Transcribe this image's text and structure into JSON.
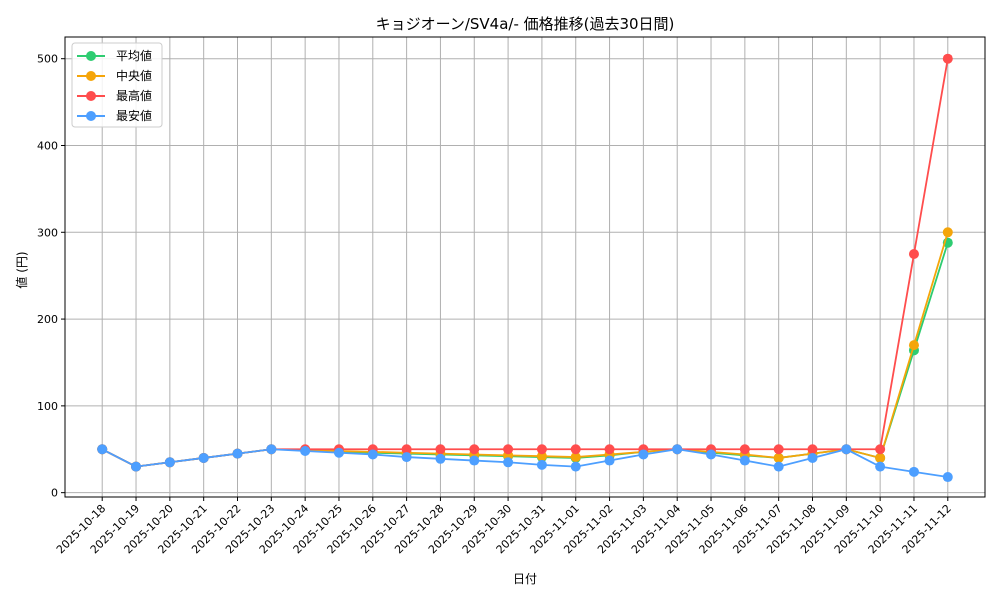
{
  "chart_data": {
    "type": "line",
    "title": "キョジオーン/SV4a/- 価格推移(過去30日間)",
    "xlabel": "日付",
    "ylabel": "値 (円)",
    "ylim": [
      -5,
      525
    ],
    "yticks": [
      0,
      100,
      200,
      300,
      400,
      500
    ],
    "grid": true,
    "legend": "top-left",
    "categories": [
      "2025-10-18",
      "2025-10-19",
      "2025-10-20",
      "2025-10-21",
      "2025-10-22",
      "2025-10-23",
      "2025-10-24",
      "2025-10-25",
      "2025-10-26",
      "2025-10-27",
      "2025-10-28",
      "2025-10-29",
      "2025-10-30",
      "2025-10-31",
      "2025-11-01",
      "2025-11-02",
      "2025-11-03",
      "2025-11-04",
      "2025-11-05",
      "2025-11-06",
      "2025-11-07",
      "2025-11-08",
      "2025-11-09",
      "2025-11-10",
      "2025-11-11",
      "2025-11-12"
    ],
    "series": [
      {
        "name": "平均値",
        "color": "#2ecc71",
        "values": [
          50,
          30,
          35,
          40,
          45,
          50,
          49,
          47,
          46,
          45,
          44,
          43,
          42,
          41,
          40,
          43,
          47,
          50,
          46,
          43,
          40,
          45,
          50,
          40,
          164,
          288
        ]
      },
      {
        "name": "中央値",
        "color": "#f5a50a",
        "values": [
          50,
          30,
          35,
          40,
          45,
          50,
          49,
          48,
          47,
          46,
          45,
          44,
          43,
          42,
          41,
          44,
          47,
          50,
          47,
          44,
          40,
          45,
          50,
          40,
          170,
          300
        ]
      },
      {
        "name": "最高値",
        "color": "#ff4d4d",
        "values": [
          50,
          30,
          35,
          40,
          45,
          50,
          50,
          50,
          50,
          50,
          50,
          50,
          50,
          50,
          50,
          50,
          50,
          50,
          50,
          50,
          50,
          50,
          50,
          50,
          275,
          500
        ]
      },
      {
        "name": "最安値",
        "color": "#4d9fff",
        "values": [
          50,
          30,
          35,
          40,
          45,
          50,
          48,
          46,
          44,
          41,
          39,
          37,
          35,
          32,
          30,
          37,
          44,
          50,
          44,
          37,
          30,
          40,
          50,
          30,
          24,
          18
        ]
      }
    ]
  }
}
